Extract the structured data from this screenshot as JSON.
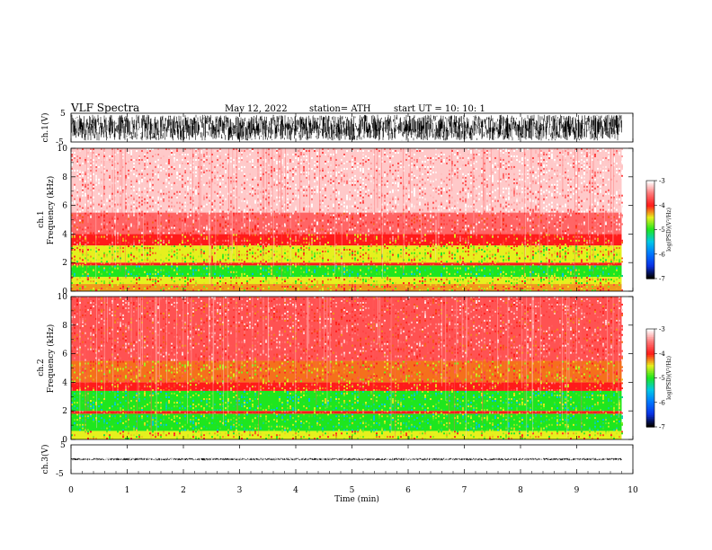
{
  "header": {
    "title": "VLF  Spectra",
    "date": "May 12, 2022",
    "station": "station= ATH",
    "start": "start  UT  =    10: 10: 1"
  },
  "panels": {
    "ch1_wave": {
      "ylabel": "ch.1(V)",
      "ytick_top": "5",
      "ytick_bottom": "-5"
    },
    "ch1_spec": {
      "ylabel_line1": "ch.1",
      "ylabel_line2": "Frequency  (kHz)",
      "yticks": [
        "0",
        "2",
        "4",
        "6",
        "8",
        "10"
      ]
    },
    "ch2_spec": {
      "ylabel_line1": "ch.2",
      "ylabel_line2": "Frequency  (kHz)",
      "yticks": [
        "0",
        "2",
        "4",
        "6",
        "8",
        "10"
      ]
    },
    "ch3_wave": {
      "ylabel": "ch.3(V)",
      "ytick_top": "5",
      "ytick_bottom": "-5"
    }
  },
  "xaxis": {
    "label": "Time  (min)",
    "ticks": [
      "0",
      "1",
      "2",
      "3",
      "4",
      "5",
      "6",
      "7",
      "8",
      "9",
      "10"
    ]
  },
  "colorbars": {
    "ticks": [
      "-3",
      "-4",
      "-5",
      "-6",
      "-7"
    ],
    "label": "log(PSD)(V²/Hz)"
  },
  "colors": {
    "red": "#ff1a1a",
    "yellow": "#e6f01e",
    "green": "#1ee61e",
    "cyan": "#00c8e6",
    "blue": "#0a32e6",
    "black": "#000000"
  },
  "chart_data": [
    {
      "type": "line",
      "name": "ch.1 waveform",
      "xlabel": "Time (min)",
      "ylabel": "ch.1(V)",
      "xlim": [
        0,
        10
      ],
      "ylim": [
        -5,
        5
      ],
      "x_end": 9.8,
      "amplitude_range": [
        -4.5,
        4.5
      ]
    },
    {
      "type": "heatmap",
      "name": "ch.1 spectrogram",
      "xlabel": "Time (min)",
      "ylabel": "Frequency (kHz)",
      "xlim": [
        0,
        10
      ],
      "ylim": [
        0,
        10
      ],
      "x_end": 9.8,
      "color_scale": {
        "label": "log(PSD)(V²/Hz)",
        "range": [
          -7,
          -3
        ]
      },
      "bands": [
        {
          "freq_khz": [
            0.0,
            0.5
          ],
          "log_psd": -4.3
        },
        {
          "freq_khz": [
            0.5,
            1.0
          ],
          "log_psd": -4.5
        },
        {
          "freq_khz": [
            1.0,
            1.8
          ],
          "log_psd": -5.0
        },
        {
          "freq_khz": [
            1.8,
            2.0
          ],
          "log_psd": -4.0
        },
        {
          "freq_khz": [
            2.0,
            3.2
          ],
          "log_psd": -4.5
        },
        {
          "freq_khz": [
            3.2,
            4.0
          ],
          "log_psd": -4.0
        },
        {
          "freq_khz": [
            4.0,
            5.5
          ],
          "log_psd": -3.6
        },
        {
          "freq_khz": [
            5.5,
            10.0
          ],
          "log_psd": -3.2
        }
      ]
    },
    {
      "type": "heatmap",
      "name": "ch.2 spectrogram",
      "xlabel": "Time (min)",
      "ylabel": "Frequency (kHz)",
      "xlim": [
        0,
        10
      ],
      "ylim": [
        0,
        10
      ],
      "x_end": 9.8,
      "color_scale": {
        "label": "log(PSD)(V²/Hz)",
        "range": [
          -7,
          -3
        ]
      },
      "bands": [
        {
          "freq_khz": [
            0.0,
            0.6
          ],
          "log_psd": -4.5
        },
        {
          "freq_khz": [
            0.6,
            1.8
          ],
          "log_psd": -5.0
        },
        {
          "freq_khz": [
            1.8,
            2.0
          ],
          "log_psd": -4.0
        },
        {
          "freq_khz": [
            2.0,
            3.4
          ],
          "log_psd": -5.0
        },
        {
          "freq_khz": [
            3.4,
            4.0
          ],
          "log_psd": -4.0
        },
        {
          "freq_khz": [
            4.0,
            5.5
          ],
          "log_psd": -4.2
        },
        {
          "freq_khz": [
            5.5,
            10.0
          ],
          "log_psd": -3.7
        }
      ]
    },
    {
      "type": "line",
      "name": "ch.3 waveform",
      "xlabel": "Time (min)",
      "ylabel": "ch.3(V)",
      "xlim": [
        0,
        10
      ],
      "ylim": [
        -5,
        5
      ],
      "x_end": 9.8,
      "amplitude_range": [
        -0.4,
        0.4
      ]
    }
  ]
}
